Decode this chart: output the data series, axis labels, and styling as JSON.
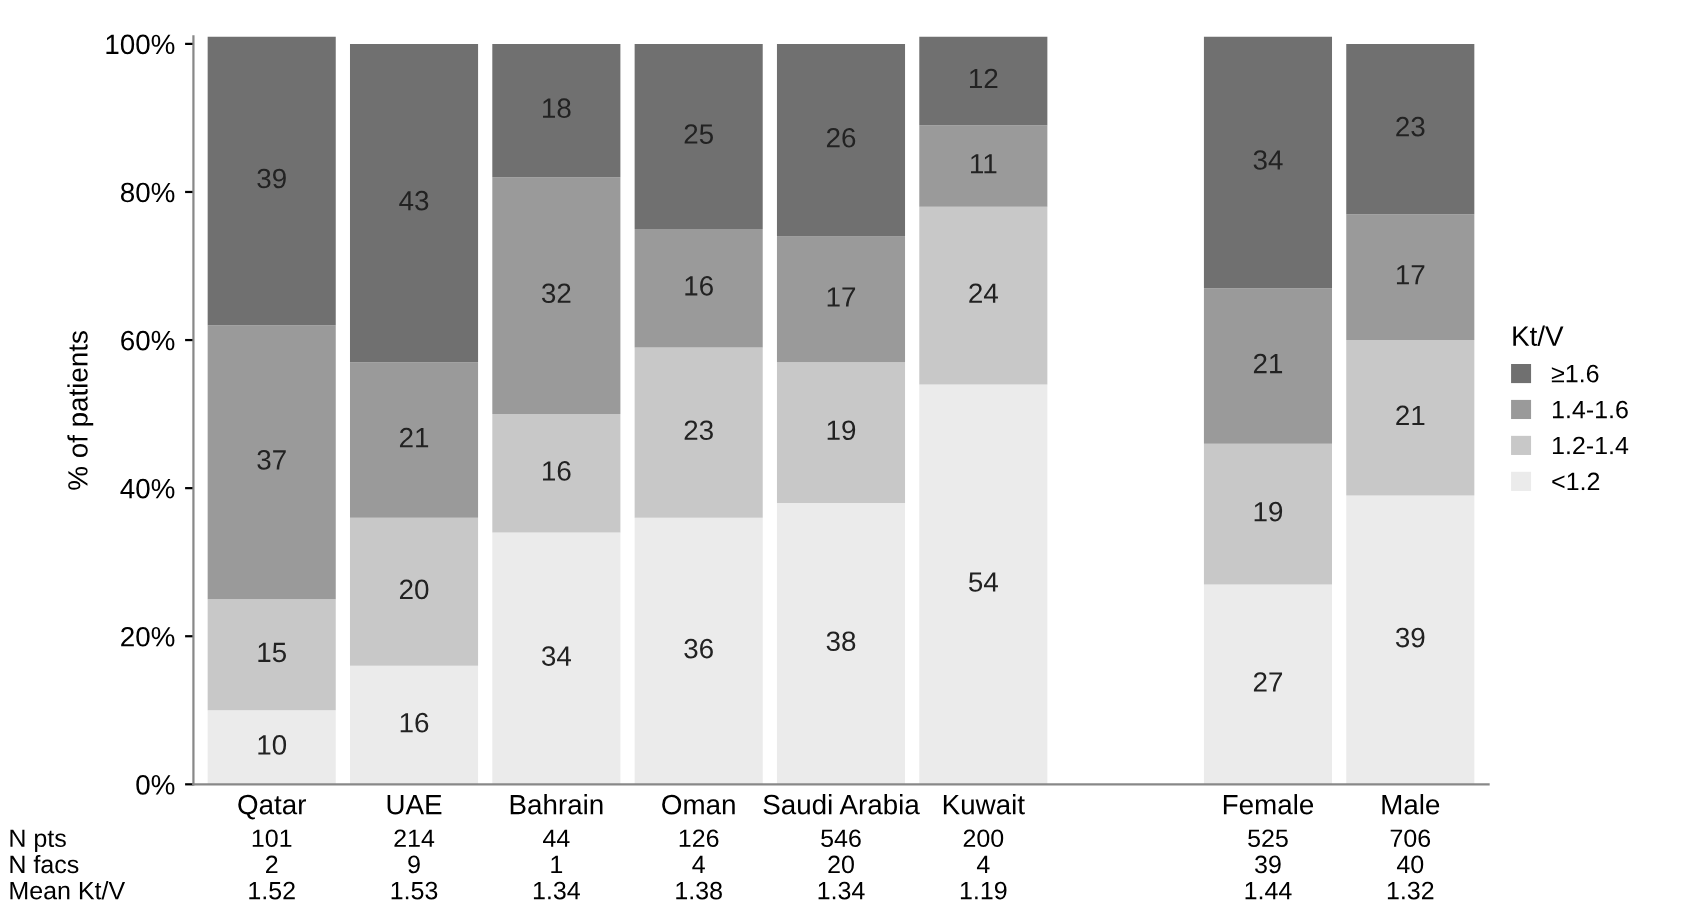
{
  "chart_data": {
    "type": "bar",
    "stacked": true,
    "ylabel": "% of patients",
    "legend_title": "Kt/V",
    "legend": "right",
    "data_labels": true,
    "grid": false,
    "categories": [
      "Qatar",
      "UAE",
      "Bahrain",
      "Oman",
      "Saudi Arabia",
      "Kuwait",
      null,
      "Female",
      "Male"
    ],
    "series": [
      {
        "name": "<1.2",
        "color": "#ebebeb",
        "values": [
          10,
          16,
          34,
          36,
          38,
          54,
          null,
          27,
          39
        ]
      },
      {
        "name": "1.2-1.4",
        "color": "#c8c8c8",
        "values": [
          15,
          20,
          16,
          23,
          19,
          24,
          null,
          19,
          21
        ]
      },
      {
        "name": "1.4-1.6",
        "color": "#9a9a9a",
        "values": [
          37,
          21,
          32,
          16,
          17,
          11,
          null,
          21,
          17
        ]
      },
      {
        "name": "≥1.6",
        "color": "#707070",
        "values": [
          39,
          43,
          18,
          25,
          26,
          12,
          null,
          34,
          23
        ]
      }
    ],
    "ylim": [
      0,
      101
    ],
    "yticks": [
      {
        "value": 0,
        "label": "0%"
      },
      {
        "value": 20,
        "label": "20%"
      },
      {
        "value": 40,
        "label": "40%"
      },
      {
        "value": 60,
        "label": "60%"
      },
      {
        "value": 80,
        "label": "80%"
      },
      {
        "value": 100,
        "label": "100%"
      }
    ],
    "annotations": [
      "N pts",
      "101",
      "214",
      "44",
      "126",
      "546",
      "200",
      "525",
      "706",
      "N facs",
      "2",
      "9",
      "1",
      "4",
      "20",
      "4",
      "39",
      "40",
      "Mean Kt/V",
      "1.52",
      "1.53",
      "1.34",
      "1.38",
      "1.34",
      "1.19",
      "1.44",
      "1.32"
    ]
  }
}
